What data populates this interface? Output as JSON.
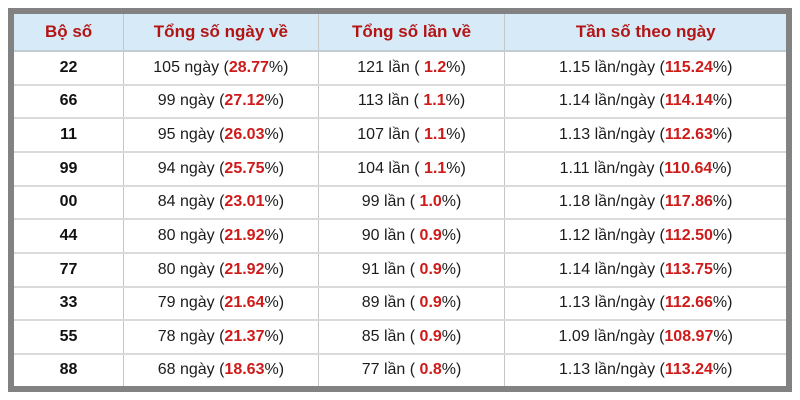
{
  "accent_colors": {
    "header_bg": "#d6eaf8",
    "header_text": "#b31515",
    "value_red": "#cf1a1a",
    "frame_gray": "#828282"
  },
  "table": {
    "headers": [
      "Bộ số",
      "Tổng số ngày về",
      "Tổng số lần về",
      "Tần số theo ngày"
    ],
    "rows": [
      {
        "pair": "22",
        "days": {
          "pre": "105 ngày (",
          "val": "28.77",
          "post": "%)"
        },
        "times": {
          "pre": "121 lần ( ",
          "val": "1.2",
          "post": "%)"
        },
        "freq": {
          "pre": "1.15 lần/ngày (",
          "val": "115.24",
          "post": "%)"
        }
      },
      {
        "pair": "66",
        "days": {
          "pre": "99 ngày (",
          "val": "27.12",
          "post": "%)"
        },
        "times": {
          "pre": "113 lần ( ",
          "val": "1.1",
          "post": "%)"
        },
        "freq": {
          "pre": "1.14 lần/ngày (",
          "val": "114.14",
          "post": "%)"
        }
      },
      {
        "pair": "11",
        "days": {
          "pre": "95 ngày (",
          "val": "26.03",
          "post": "%)"
        },
        "times": {
          "pre": "107 lần ( ",
          "val": "1.1",
          "post": "%)"
        },
        "freq": {
          "pre": "1.13 lần/ngày (",
          "val": "112.63",
          "post": "%)"
        }
      },
      {
        "pair": "99",
        "days": {
          "pre": "94 ngày (",
          "val": "25.75",
          "post": "%)"
        },
        "times": {
          "pre": "104 lần ( ",
          "val": "1.1",
          "post": "%)"
        },
        "freq": {
          "pre": "1.11 lần/ngày (",
          "val": "110.64",
          "post": "%)"
        }
      },
      {
        "pair": "00",
        "days": {
          "pre": "84 ngày (",
          "val": "23.01",
          "post": "%)"
        },
        "times": {
          "pre": "99 lần ( ",
          "val": "1.0",
          "post": "%)"
        },
        "freq": {
          "pre": "1.18 lần/ngày (",
          "val": "117.86",
          "post": "%)"
        }
      },
      {
        "pair": "44",
        "days": {
          "pre": "80 ngày (",
          "val": "21.92",
          "post": "%)"
        },
        "times": {
          "pre": "90 lần ( ",
          "val": "0.9",
          "post": "%)"
        },
        "freq": {
          "pre": "1.12 lần/ngày (",
          "val": "112.50",
          "post": "%)"
        }
      },
      {
        "pair": "77",
        "days": {
          "pre": "80 ngày (",
          "val": "21.92",
          "post": "%)"
        },
        "times": {
          "pre": "91 lần ( ",
          "val": "0.9",
          "post": "%)"
        },
        "freq": {
          "pre": "1.14 lần/ngày (",
          "val": "113.75",
          "post": "%)"
        }
      },
      {
        "pair": "33",
        "days": {
          "pre": "79 ngày (",
          "val": "21.64",
          "post": "%)"
        },
        "times": {
          "pre": "89 lần ( ",
          "val": "0.9",
          "post": "%)"
        },
        "freq": {
          "pre": "1.13 lần/ngày (",
          "val": "112.66",
          "post": "%)"
        }
      },
      {
        "pair": "55",
        "days": {
          "pre": "78 ngày (",
          "val": "21.37",
          "post": "%)"
        },
        "times": {
          "pre": "85 lần ( ",
          "val": "0.9",
          "post": "%)"
        },
        "freq": {
          "pre": "1.09 lần/ngày (",
          "val": "108.97",
          "post": "%)"
        }
      },
      {
        "pair": "88",
        "days": {
          "pre": "68 ngày (",
          "val": "18.63",
          "post": "%)"
        },
        "times": {
          "pre": "77 lần ( ",
          "val": "0.8",
          "post": "%)"
        },
        "freq": {
          "pre": "1.13 lần/ngày (",
          "val": "113.24",
          "post": "%)"
        }
      }
    ]
  }
}
